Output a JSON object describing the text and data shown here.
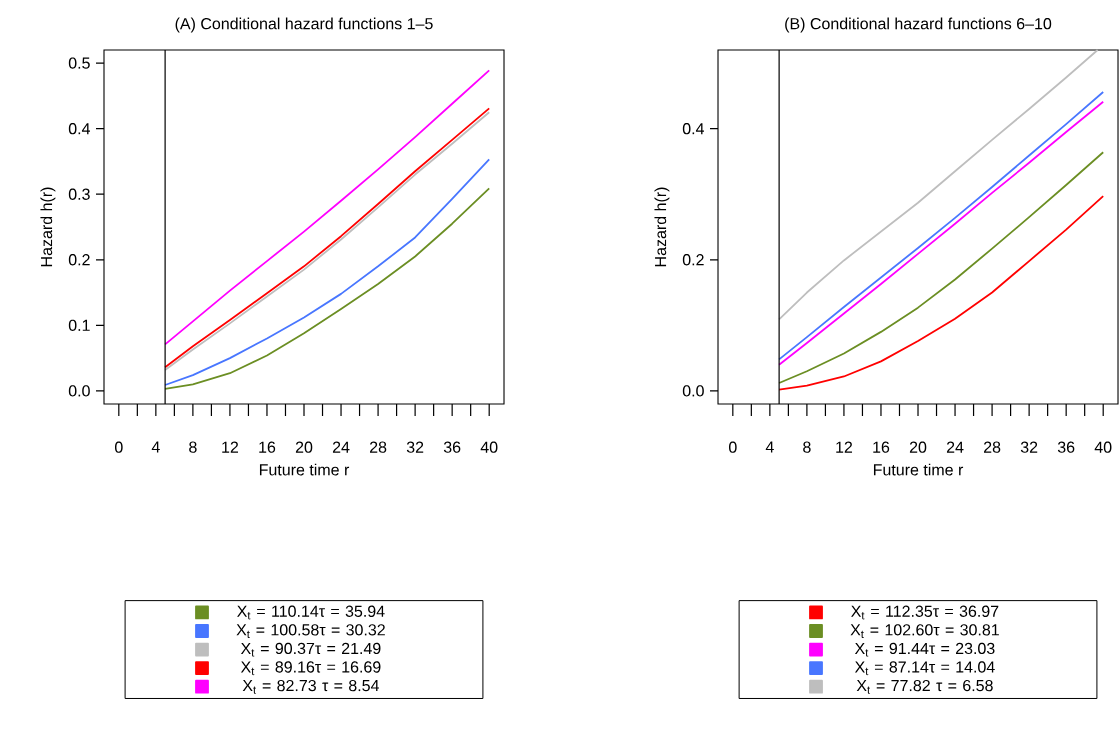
{
  "chart_data": [
    {
      "type": "line",
      "title": "(A) Conditional hazard functions 1–5",
      "xlabel": "Future time r",
      "ylabel": "Hazard h(r)",
      "x": [
        5,
        8,
        12,
        16,
        20,
        24,
        28,
        32,
        36,
        40
      ],
      "series": [
        {
          "name": "X$_{t}$ = 110.14τ = 35.94",
          "color": "#6b8e23",
          "values": [
            0.003,
            0.01,
            0.027,
            0.054,
            0.088,
            0.125,
            0.163,
            0.205,
            0.255,
            0.309
          ]
        },
        {
          "name": "X$_{t}$ = 100.58τ = 30.32",
          "color": "#4876ff",
          "values": [
            0.009,
            0.024,
            0.05,
            0.08,
            0.112,
            0.148,
            0.19,
            0.234,
            0.293,
            0.353
          ]
        },
        {
          "name": "X$_{t}$ = 90.37τ = 21.49",
          "color": "#bebebe",
          "values": [
            0.032,
            0.063,
            0.103,
            0.144,
            0.185,
            0.231,
            0.28,
            0.33,
            0.377,
            0.425
          ]
        },
        {
          "name": "X$_{t}$ = 89.16τ = 16.69",
          "color": "#ff0000",
          "values": [
            0.036,
            0.068,
            0.108,
            0.149,
            0.19,
            0.236,
            0.285,
            0.335,
            0.383,
            0.431
          ]
        },
        {
          "name": "X$_{t}$ = 82.73 τ = 8.54",
          "color": "#ff00ff",
          "values": [
            0.071,
            0.106,
            0.153,
            0.198,
            0.243,
            0.29,
            0.338,
            0.387,
            0.438,
            0.489
          ]
        }
      ],
      "xlim": [
        -1.6,
        41.6
      ],
      "ylim": [
        -0.02,
        0.52
      ],
      "xticks": [
        0,
        {
          "value": 2,
          "label": null
        },
        4,
        {
          "value": 6,
          "label": null
        },
        8,
        {
          "value": 10,
          "label": null
        },
        12,
        {
          "value": 14,
          "label": null
        },
        16,
        {
          "value": 18,
          "label": null
        },
        20,
        {
          "value": 22,
          "label": null
        },
        24,
        {
          "value": 26,
          "label": null
        },
        28,
        {
          "value": 30,
          "label": null
        },
        32,
        {
          "value": 34,
          "label": null
        },
        36,
        {
          "value": 38,
          "label": null
        },
        40
      ],
      "yticks": [
        {
          "value": 0,
          "label": "0.0"
        },
        0.1,
        0.2,
        0.3,
        0.4,
        0.5
      ],
      "ref_lines": [
        {
          "axis": "x",
          "value": 5,
          "color": "#000000"
        }
      ],
      "legend": "bottom",
      "marker": "none",
      "line_style": "solid"
    },
    {
      "type": "line",
      "title": "(B) Conditional hazard functions 6–10",
      "xlabel": "Future time r",
      "ylabel": "Hazard h(r)",
      "x": [
        5,
        8,
        12,
        16,
        20,
        24,
        28,
        32,
        36,
        40
      ],
      "series": [
        {
          "name": "X$_{t}$ = 112.35τ = 36.97",
          "color": "#ff0000",
          "values": [
            0.002,
            0.008,
            0.022,
            0.045,
            0.076,
            0.11,
            0.15,
            0.198,
            0.246,
            0.297
          ]
        },
        {
          "name": "X$_{t}$ = 102.60τ = 30.81",
          "color": "#6b8e23",
          "values": [
            0.012,
            0.03,
            0.057,
            0.09,
            0.127,
            0.17,
            0.217,
            0.265,
            0.314,
            0.364
          ]
        },
        {
          "name": "X$_{t}$ = 91.44τ = 23.03",
          "color": "#ff00ff",
          "values": [
            0.04,
            0.073,
            0.118,
            0.163,
            0.209,
            0.255,
            0.302,
            0.348,
            0.395,
            0.441
          ]
        },
        {
          "name": "X$_{t}$ = 87.14τ = 14.04",
          "color": "#4876ff",
          "values": [
            0.048,
            0.082,
            0.128,
            0.173,
            0.218,
            0.264,
            0.311,
            0.359,
            0.407,
            0.456
          ]
        },
        {
          "name": "X$_{t}$ = 77.82 τ = 6.58",
          "color": "#bebebe",
          "x": [
            5,
            8,
            12,
            16,
            20,
            24,
            28,
            32,
            36,
            39.4
          ],
          "values": [
            0.109,
            0.15,
            0.199,
            0.243,
            0.287,
            0.335,
            0.383,
            0.43,
            0.478,
            0.52
          ]
        }
      ],
      "xlim": [
        -1.6,
        41.6
      ],
      "ylim": [
        -0.02,
        0.52
      ],
      "xticks": [
        0,
        {
          "value": 2,
          "label": null
        },
        4,
        {
          "value": 6,
          "label": null
        },
        8,
        {
          "value": 10,
          "label": null
        },
        12,
        {
          "value": 14,
          "label": null
        },
        16,
        {
          "value": 18,
          "label": null
        },
        20,
        {
          "value": 22,
          "label": null
        },
        24,
        {
          "value": 26,
          "label": null
        },
        28,
        {
          "value": 30,
          "label": null
        },
        32,
        {
          "value": 34,
          "label": null
        },
        36,
        {
          "value": 38,
          "label": null
        },
        40
      ],
      "yticks": [
        {
          "value": 0,
          "label": "0.0"
        },
        0.2,
        0.4
      ],
      "ref_lines": [
        {
          "axis": "x",
          "value": 5,
          "color": "#000000"
        }
      ],
      "legend": "bottom",
      "marker": "none",
      "line_style": "solid"
    }
  ]
}
